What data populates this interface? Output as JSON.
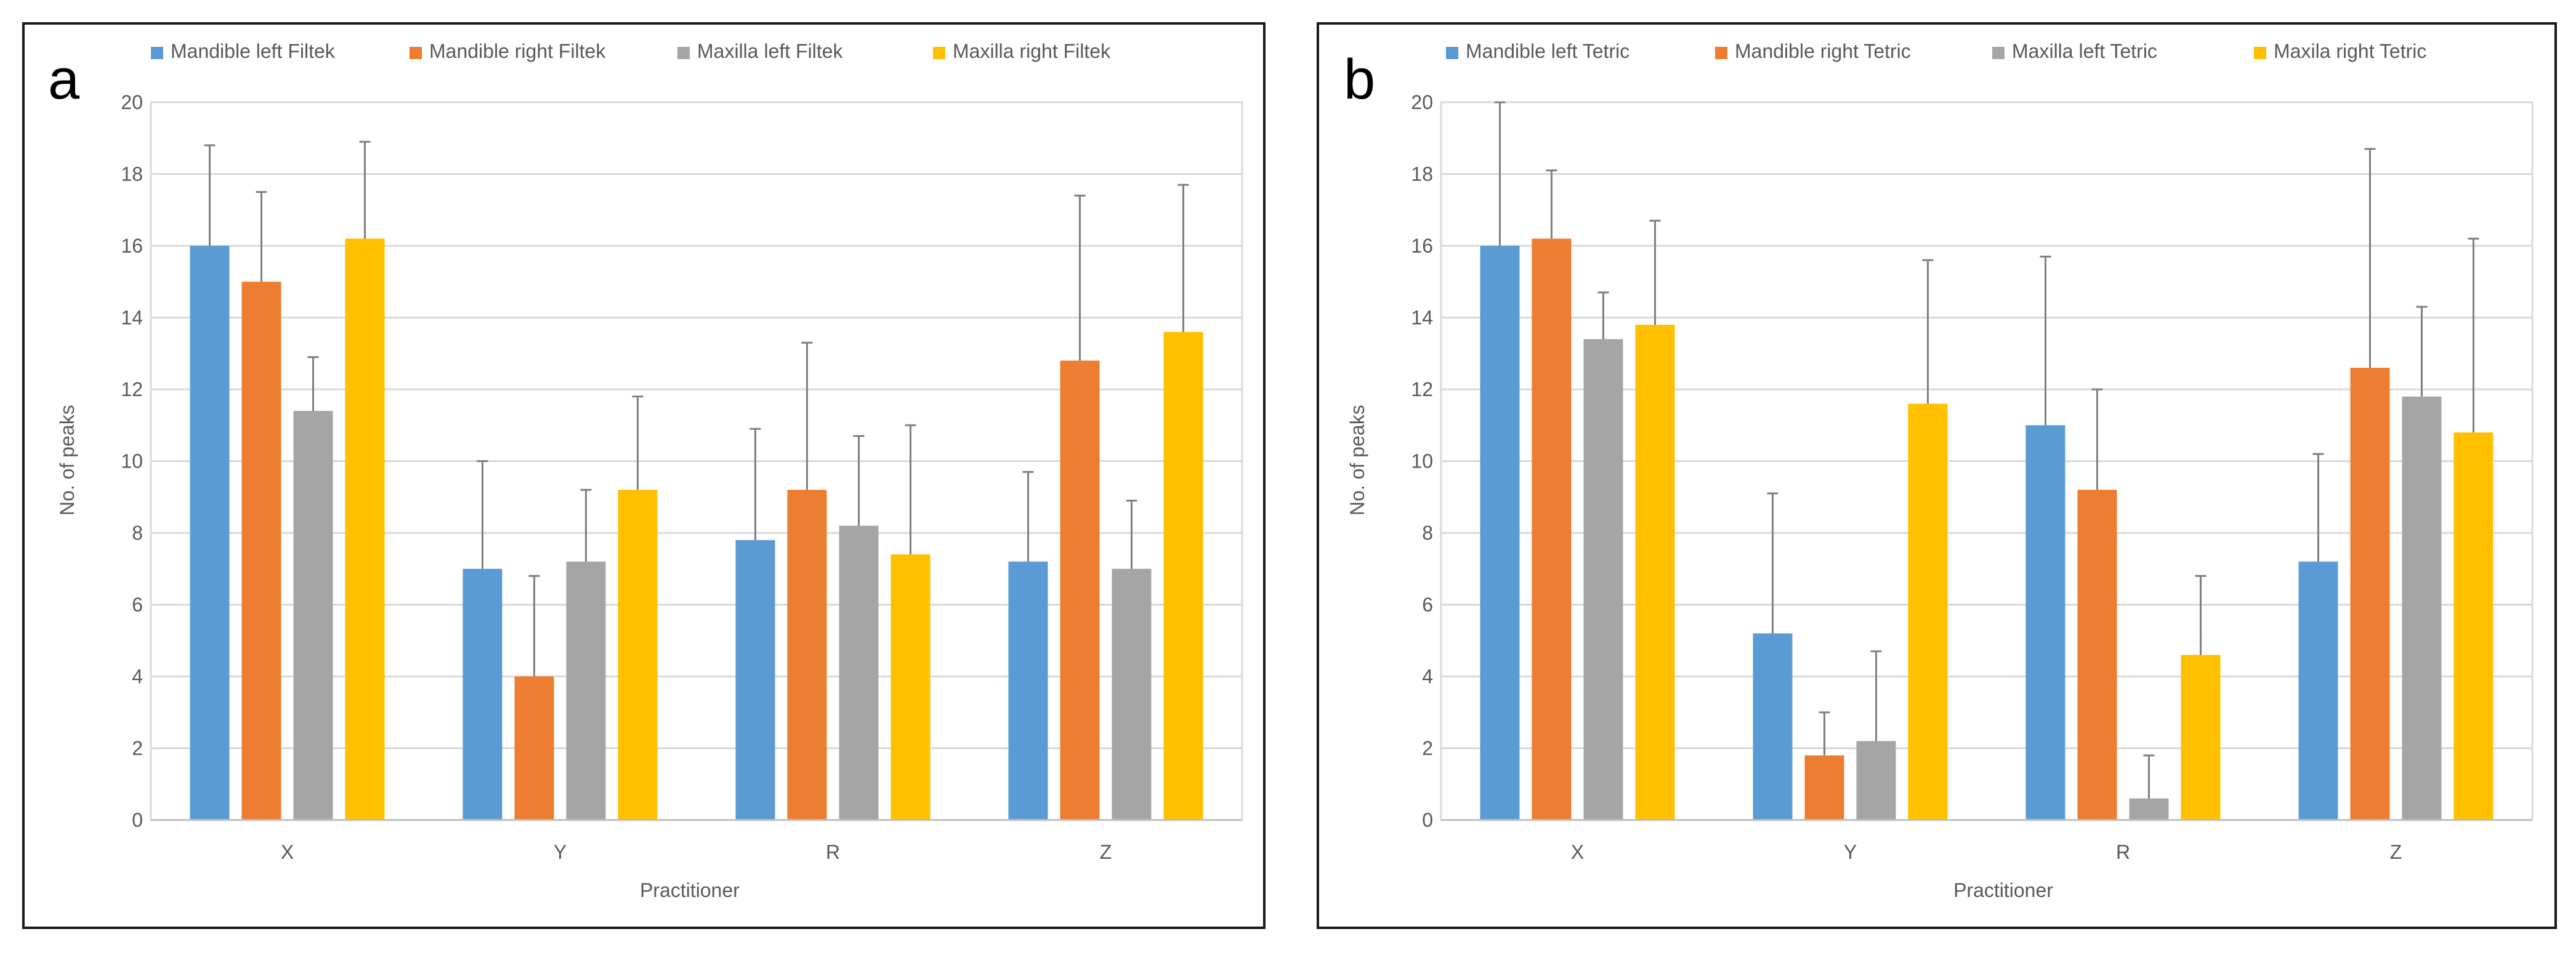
{
  "panels": [
    {
      "letter": "a",
      "xlabel": "Practitioner",
      "ylabel": "No. of peaks"
    },
    {
      "letter": "b",
      "xlabel": "Practitioner",
      "ylabel": "No. of peaks"
    }
  ],
  "chart_data": [
    {
      "type": "bar",
      "panel_label": "a",
      "categories": [
        "X",
        "Y",
        "R",
        "Z"
      ],
      "xlabel": "Practitioner",
      "ylabel": "No. of peaks",
      "ylim": [
        0,
        20
      ],
      "yticks": [
        0,
        2,
        4,
        6,
        8,
        10,
        12,
        14,
        16,
        18,
        20
      ],
      "grid": "horizontal",
      "legend_position": "top",
      "error_bars": "upper",
      "series": [
        {
          "name": "Mandible left Filtek",
          "color": "#5B9BD5",
          "values": [
            16.0,
            7.0,
            7.8,
            7.2
          ],
          "errors": [
            2.8,
            3.0,
            3.1,
            2.5
          ]
        },
        {
          "name": "Mandible right Filtek",
          "color": "#ED7D31",
          "values": [
            15.0,
            4.0,
            9.2,
            12.8
          ],
          "errors": [
            2.5,
            2.8,
            4.1,
            4.6
          ]
        },
        {
          "name": "Maxilla left Filtek",
          "color": "#A5A5A5",
          "values": [
            11.4,
            7.2,
            8.2,
            7.0
          ],
          "errors": [
            1.5,
            2.0,
            2.5,
            1.9
          ]
        },
        {
          "name": "Maxilla right Filtek",
          "color": "#FFC000",
          "values": [
            16.2,
            9.2,
            7.4,
            13.6
          ],
          "errors": [
            2.7,
            2.6,
            3.6,
            4.1
          ]
        }
      ]
    },
    {
      "type": "bar",
      "panel_label": "b",
      "categories": [
        "X",
        "Y",
        "R",
        "Z"
      ],
      "xlabel": "Practitioner",
      "ylabel": "No. of peaks",
      "ylim": [
        0,
        20
      ],
      "yticks": [
        0,
        2,
        4,
        6,
        8,
        10,
        12,
        14,
        16,
        18,
        20
      ],
      "grid": "horizontal",
      "legend_position": "top",
      "error_bars": "upper",
      "series": [
        {
          "name": "Mandible left Tetric",
          "color": "#5B9BD5",
          "values": [
            16.0,
            5.2,
            11.0,
            7.2
          ],
          "errors": [
            4.0,
            3.9,
            4.7,
            3.0
          ]
        },
        {
          "name": "Mandible right Tetric",
          "color": "#ED7D31",
          "values": [
            16.2,
            1.8,
            9.2,
            12.6
          ],
          "errors": [
            1.9,
            1.2,
            2.8,
            6.1
          ]
        },
        {
          "name": "Maxilla left Tetric",
          "color": "#A5A5A5",
          "values": [
            13.4,
            2.2,
            0.6,
            11.8
          ],
          "errors": [
            1.3,
            2.5,
            1.2,
            2.5
          ]
        },
        {
          "name": "Maxila right Tetric",
          "color": "#FFC000",
          "values": [
            13.8,
            11.6,
            4.6,
            10.8
          ],
          "errors": [
            2.9,
            4.0,
            2.2,
            5.4
          ]
        }
      ]
    }
  ]
}
